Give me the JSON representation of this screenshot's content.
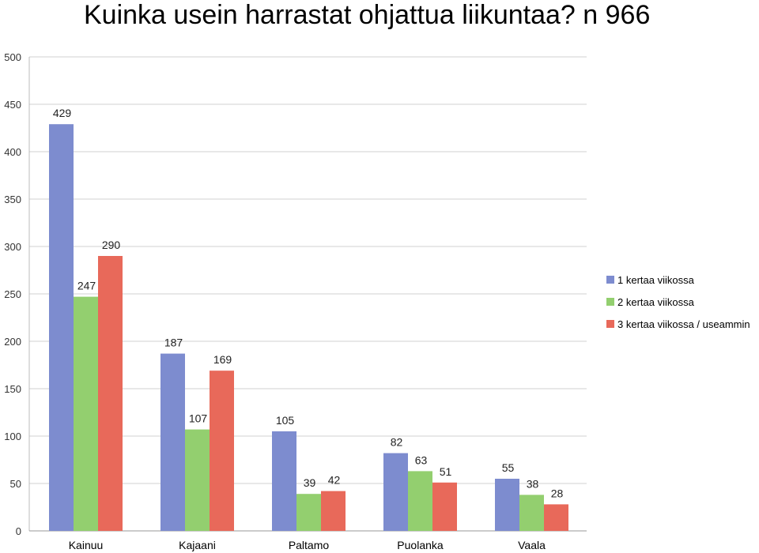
{
  "chart_data": {
    "type": "bar",
    "title": "Kuinka usein harrastat ohjattua liikuntaa? n 966",
    "categories": [
      "Kainuu",
      "Kajaani",
      "Paltamo",
      "Puolanka",
      "Vaala"
    ],
    "series": [
      {
        "name": "1 kertaa viikossa",
        "color": "#7d8ccf",
        "values": [
          429,
          187,
          105,
          82,
          55
        ]
      },
      {
        "name": "2 kertaa viikossa",
        "color": "#93cf6f",
        "values": [
          247,
          107,
          39,
          63,
          38
        ]
      },
      {
        "name": "3 kertaa viikossa / useammin",
        "color": "#e8695a",
        "values": [
          290,
          169,
          42,
          51,
          28
        ]
      }
    ],
    "ylim": [
      0,
      500
    ],
    "yticks": [
      0,
      50,
      100,
      150,
      200,
      250,
      300,
      350,
      400,
      450,
      500
    ],
    "grid": true,
    "legend": "right",
    "data_labels": true
  }
}
